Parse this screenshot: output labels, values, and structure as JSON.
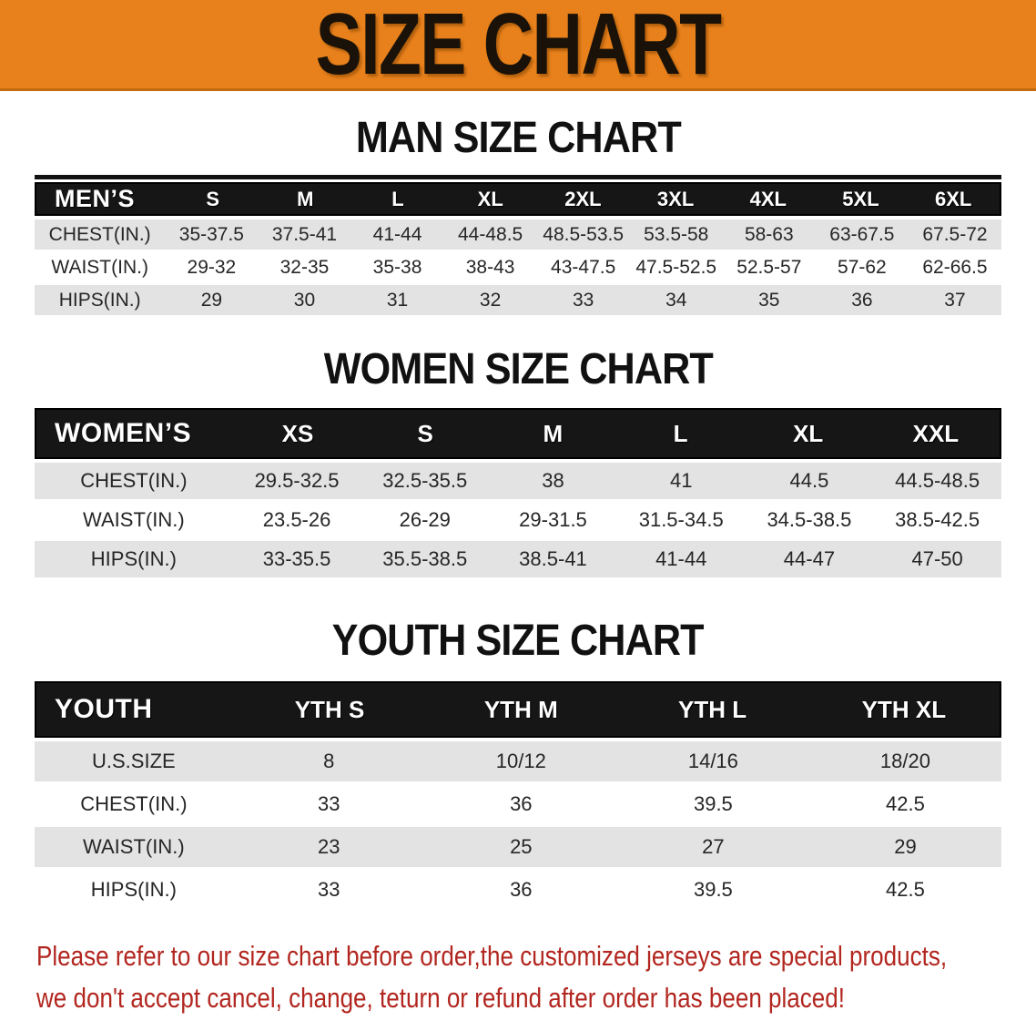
{
  "banner": {
    "title": "SIZE CHART",
    "bg_color": "#E8811B",
    "text_color": "#1A1208"
  },
  "sections": [
    {
      "id": "men",
      "heading": "MAN SIZE CHART",
      "table_label": "MEN’S",
      "columns": [
        "S",
        "M",
        "L",
        "XL",
        "2XL",
        "3XL",
        "4XL",
        "5XL",
        "6XL"
      ],
      "rows": [
        {
          "label": "CHEST(IN.)",
          "values": [
            "35-37.5",
            "37.5-41",
            "41-44",
            "44-48.5",
            "48.5-53.5",
            "53.5-58",
            "58-63",
            "63-67.5",
            "67.5-72"
          ]
        },
        {
          "label": "WAIST(IN.)",
          "values": [
            "29-32",
            "32-35",
            "35-38",
            "38-43",
            "43-47.5",
            "47.5-52.5",
            "52.5-57",
            "57-62",
            "62-66.5"
          ]
        },
        {
          "label": "HIPS(IN.)",
          "values": [
            "29",
            "30",
            "31",
            "32",
            "33",
            "34",
            "35",
            "36",
            "37"
          ]
        }
      ]
    },
    {
      "id": "women",
      "heading": "WOMEN SIZE CHART",
      "table_label": "WOMEN’S",
      "columns": [
        "XS",
        "S",
        "M",
        "L",
        "XL",
        "XXL"
      ],
      "rows": [
        {
          "label": "CHEST(IN.)",
          "values": [
            "29.5-32.5",
            "32.5-35.5",
            "38",
            "41",
            "44.5",
            "44.5-48.5"
          ]
        },
        {
          "label": "WAIST(IN.)",
          "values": [
            "23.5-26",
            "26-29",
            "29-31.5",
            "31.5-34.5",
            "34.5-38.5",
            "38.5-42.5"
          ]
        },
        {
          "label": "HIPS(IN.)",
          "values": [
            "33-35.5",
            "35.5-38.5",
            "38.5-41",
            "41-44",
            "44-47",
            "47-50"
          ]
        }
      ]
    },
    {
      "id": "youth",
      "heading": "YOUTH SIZE CHART",
      "table_label": "YOUTH",
      "columns": [
        "YTH S",
        "YTH M",
        "YTH L",
        "YTH XL"
      ],
      "rows": [
        {
          "label": "U.S.SIZE",
          "values": [
            "8",
            "10/12",
            "14/16",
            "18/20"
          ]
        },
        {
          "label": "CHEST(IN.)",
          "values": [
            "33",
            "36",
            "39.5",
            "42.5"
          ]
        },
        {
          "label": "WAIST(IN.)",
          "values": [
            "23",
            "25",
            "27",
            "29"
          ]
        },
        {
          "label": "HIPS(IN.)",
          "values": [
            "33",
            "36",
            "39.5",
            "42.5"
          ]
        }
      ]
    }
  ],
  "footer": {
    "color": "#B2261F",
    "lines": [
      "Please refer to our size chart before order,the customized jerseys are special products,",
      "we don't accept cancel, change, teturn or refund after order has been placed!"
    ]
  }
}
